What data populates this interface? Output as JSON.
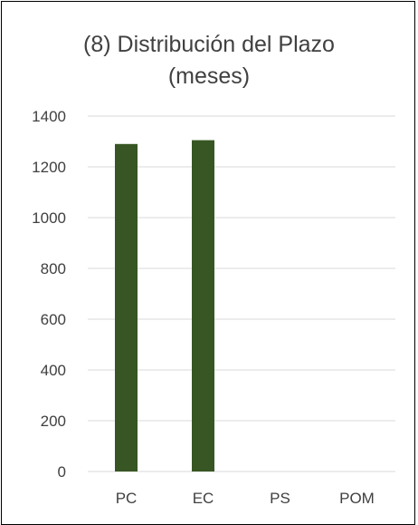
{
  "chart_data": {
    "type": "bar",
    "title_lines": [
      "(8) Distribución del Plazo",
      "(meses)"
    ],
    "categories": [
      "PC",
      "EC",
      "PS",
      "POM"
    ],
    "values": [
      1290,
      1305,
      0,
      0
    ],
    "xlabel": "",
    "ylabel": "",
    "ylim": [
      0,
      1400
    ],
    "yticks": [
      0,
      200,
      400,
      600,
      800,
      1000,
      1200,
      1400
    ],
    "grid": true,
    "legend": "none",
    "bar_color": "#375623",
    "grid_color": "#d9d9d9",
    "text_color": "#404040"
  }
}
